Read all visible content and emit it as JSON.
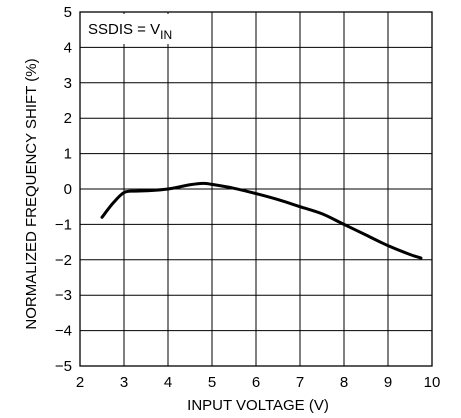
{
  "chart_data": {
    "type": "line",
    "xlabel": "INPUT VOLTAGE (V)",
    "ylabel": "NORMALIZED FREQUENCY SHIFT (%)",
    "xlim": [
      2,
      10
    ],
    "ylim": [
      -5,
      5
    ],
    "xticks": [
      2,
      3,
      4,
      5,
      6,
      7,
      8,
      9,
      10
    ],
    "yticks": [
      5,
      4,
      3,
      2,
      1,
      0,
      -1,
      -2,
      -3,
      -4,
      -5
    ],
    "xtick_labels": [
      "2",
      "3",
      "4",
      "5",
      "6",
      "7",
      "8",
      "9",
      "10"
    ],
    "ytick_labels": [
      "5",
      "4",
      "3",
      "2",
      "1",
      "0",
      "−1",
      "−2",
      "−3",
      "−4",
      "−5"
    ],
    "grid": true,
    "annotation": {
      "main": "SSDIS = V",
      "subscript": "IN"
    },
    "series": [
      {
        "x": [
          2.5,
          2.75,
          3.0,
          3.25,
          3.5,
          4.0,
          4.5,
          4.8,
          5.0,
          5.5,
          6.0,
          6.5,
          7.0,
          7.5,
          8.0,
          8.5,
          9.0,
          9.5,
          9.75
        ],
        "y": [
          -0.8,
          -0.4,
          -0.1,
          -0.06,
          -0.05,
          0.0,
          0.12,
          0.16,
          0.13,
          0.02,
          -0.13,
          -0.3,
          -0.5,
          -0.7,
          -1.0,
          -1.3,
          -1.6,
          -1.85,
          -1.95
        ]
      }
    ]
  }
}
